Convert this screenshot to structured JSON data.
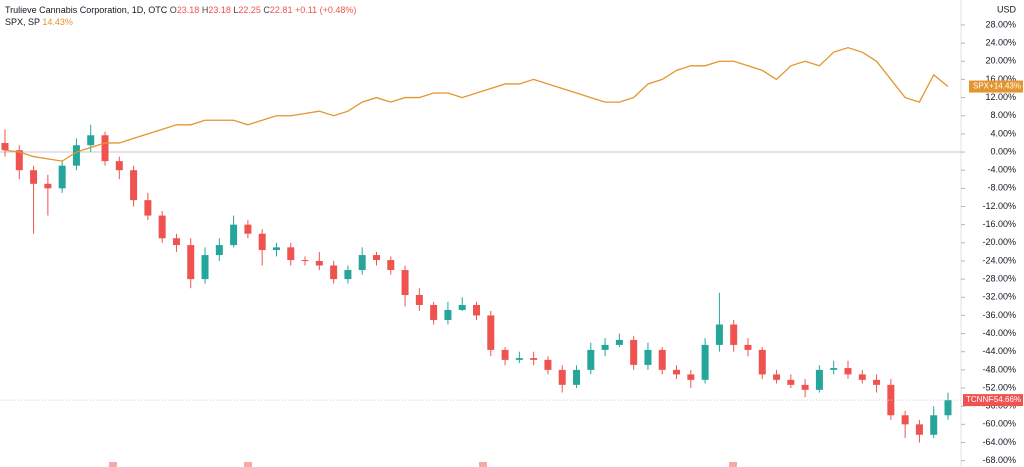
{
  "header": {
    "title": "Trulieve Cannabis Corporation, 1D, OTC",
    "ohlc": [
      {
        "label": "O",
        "value": "23.18"
      },
      {
        "label": "H",
        "value": "23.18"
      },
      {
        "label": "L",
        "value": "22.25"
      },
      {
        "label": "C",
        "value": "22.81"
      }
    ],
    "change": "+0.11 (+0.48%)",
    "compare": {
      "name": "SPX, SP",
      "value": "14.43%"
    }
  },
  "chart_data": {
    "type": "candlestick",
    "currency": "USD",
    "ylim": [
      -69.4,
      33.5
    ],
    "yticks": [
      {
        "value": -68,
        "label": "-68.00%"
      },
      {
        "value": -64,
        "label": "-64.00%"
      },
      {
        "value": -60,
        "label": "-60.00%"
      },
      {
        "value": -56,
        "label": "-56.00%"
      },
      {
        "value": -52,
        "label": "-52.00%"
      },
      {
        "value": -48,
        "label": "-48.00%"
      },
      {
        "value": -44,
        "label": "-44.00%"
      },
      {
        "value": -40,
        "label": "-40.00%"
      },
      {
        "value": -36,
        "label": "-36.00%"
      },
      {
        "value": -32,
        "label": "-32.00%"
      },
      {
        "value": -28,
        "label": "-28.00%"
      },
      {
        "value": -24,
        "label": "-24.00%"
      },
      {
        "value": -20,
        "label": "-20.00%"
      },
      {
        "value": -16,
        "label": "-16.00%"
      },
      {
        "value": -12,
        "label": "-12.00%"
      },
      {
        "value": -8,
        "label": "-8.00%"
      },
      {
        "value": -4,
        "label": "-4.00%"
      },
      {
        "value": 0,
        "label": "0.00%"
      },
      {
        "value": 4,
        "label": "4.00%"
      },
      {
        "value": 8,
        "label": "8.00%"
      },
      {
        "value": 12,
        "label": "12.00%"
      },
      {
        "value": 16,
        "label": "16.00%"
      },
      {
        "value": 20,
        "label": "20.00%"
      },
      {
        "value": 24,
        "label": "24.00%"
      },
      {
        "value": 28,
        "label": "28.00%"
      }
    ],
    "up_color": "#26a69a",
    "down_color": "#ef5350",
    "main": {
      "name": "TCNNF",
      "last_label": "-54.66%"
    },
    "candles": [
      [
        2,
        5,
        -1,
        0.4
      ],
      [
        0.4,
        1.5,
        -6,
        -4
      ],
      [
        -4,
        -3,
        -18,
        -7
      ],
      [
        -7,
        -5,
        -14,
        -8
      ],
      [
        -8,
        -2,
        -9,
        -3
      ],
      [
        -3,
        3,
        -4,
        1.5
      ],
      [
        1.5,
        6,
        0,
        3.7
      ],
      [
        3.7,
        4.5,
        -3,
        -2
      ],
      [
        -2,
        -1,
        -6,
        -4
      ],
      [
        -4,
        -3,
        -12,
        -10.6
      ],
      [
        -10.6,
        -9,
        -15,
        -14
      ],
      [
        -14,
        -13,
        -20,
        -19
      ],
      [
        -19,
        -18,
        -22,
        -20.5
      ],
      [
        -20.5,
        -19,
        -30,
        -28
      ],
      [
        -28,
        -21,
        -29,
        -22.7
      ],
      [
        -22.7,
        -19,
        -24,
        -20.5
      ],
      [
        -20.5,
        -14,
        -21,
        -16
      ],
      [
        -16,
        -15,
        -19,
        -18
      ],
      [
        -18,
        -17,
        -25,
        -21.6
      ],
      [
        -21.6,
        -20,
        -23,
        -21
      ],
      [
        -21,
        -20,
        -25,
        -23.8
      ],
      [
        -23.8,
        -23,
        -25,
        -24
      ],
      [
        -24,
        -22,
        -26,
        -25
      ],
      [
        -25,
        -24,
        -29,
        -28
      ],
      [
        -28,
        -25,
        -29,
        -26
      ],
      [
        -26,
        -21,
        -27,
        -22.7
      ],
      [
        -22.7,
        -22,
        -25,
        -23.8
      ],
      [
        -23.8,
        -23,
        -27,
        -26
      ],
      [
        -26,
        -25,
        -34,
        -31.5
      ],
      [
        -31.5,
        -30,
        -35,
        -33.7
      ],
      [
        -33.7,
        -33,
        -38,
        -37
      ],
      [
        -37,
        -33,
        -38,
        -34.8
      ],
      [
        -34.8,
        -32,
        -35,
        -33.7
      ],
      [
        -33.7,
        -33,
        -37,
        -36
      ],
      [
        -36,
        -35,
        -45,
        -43.6
      ],
      [
        -43.6,
        -43,
        -47,
        -45.8
      ],
      [
        -45.8,
        -44,
        -46.5,
        -45.4
      ],
      [
        -45.4,
        -44,
        -47,
        -45.8
      ],
      [
        -45.8,
        -45,
        -49,
        -48
      ],
      [
        -48,
        -47,
        -53,
        -51.3
      ],
      [
        -51.3,
        -47,
        -52,
        -48
      ],
      [
        -48,
        -42,
        -49,
        -43.6
      ],
      [
        -43.6,
        -41,
        -45,
        -42.5
      ],
      [
        -42.5,
        -40,
        -43,
        -41.4
      ],
      [
        -41.4,
        -40.5,
        -48,
        -46.9
      ],
      [
        -46.9,
        -42,
        -48,
        -43.6
      ],
      [
        -43.6,
        -43,
        -49,
        -48
      ],
      [
        -48,
        -47,
        -50,
        -49
      ],
      [
        -49,
        -48,
        -52,
        -50.2
      ],
      [
        -50.2,
        -41,
        -51,
        -42.5
      ],
      [
        -42.5,
        -31,
        -44,
        -38
      ],
      [
        -38,
        -37,
        -44,
        -42.5
      ],
      [
        -42.5,
        -41,
        -45,
        -43.6
      ],
      [
        -43.6,
        -43,
        -50,
        -49
      ],
      [
        -49,
        -48,
        -51,
        -50.2
      ],
      [
        -50.2,
        -49,
        -52,
        -51.3
      ],
      [
        -51.3,
        -50,
        -54,
        -52.4
      ],
      [
        -52.4,
        -47,
        -53,
        -48
      ],
      [
        -48,
        -46,
        -49,
        -47.6
      ],
      [
        -47.6,
        -46,
        -50,
        -49
      ],
      [
        -49,
        -48,
        -51,
        -50.2
      ],
      [
        -50.2,
        -49,
        -53,
        -51.3
      ],
      [
        -51.3,
        -50,
        -59,
        -58
      ],
      [
        -58,
        -57,
        -63,
        -60
      ],
      [
        -60,
        -59,
        -64,
        -62.3
      ],
      [
        -62.3,
        -56,
        -63,
        -58
      ],
      [
        -58,
        -53,
        -59,
        -54.66
      ]
    ],
    "series": [
      {
        "name": "SPX",
        "color": "#e4952f",
        "last_label": "+14.43%",
        "values": [
          0.4,
          0,
          -1,
          -1.5,
          -2,
          0,
          1,
          2,
          2,
          3,
          4,
          5,
          6,
          6,
          7,
          7,
          7,
          6,
          7,
          8,
          8,
          8.5,
          9,
          8,
          9,
          11,
          12,
          11,
          12,
          12,
          13,
          13,
          12,
          13,
          14,
          15,
          15,
          16,
          15,
          14,
          13,
          12,
          11,
          11,
          12,
          15,
          16,
          18,
          19,
          19,
          20,
          20,
          19,
          18,
          16,
          19,
          20,
          19,
          22,
          23,
          22,
          20,
          16,
          12,
          11,
          17,
          14.43
        ]
      }
    ]
  }
}
